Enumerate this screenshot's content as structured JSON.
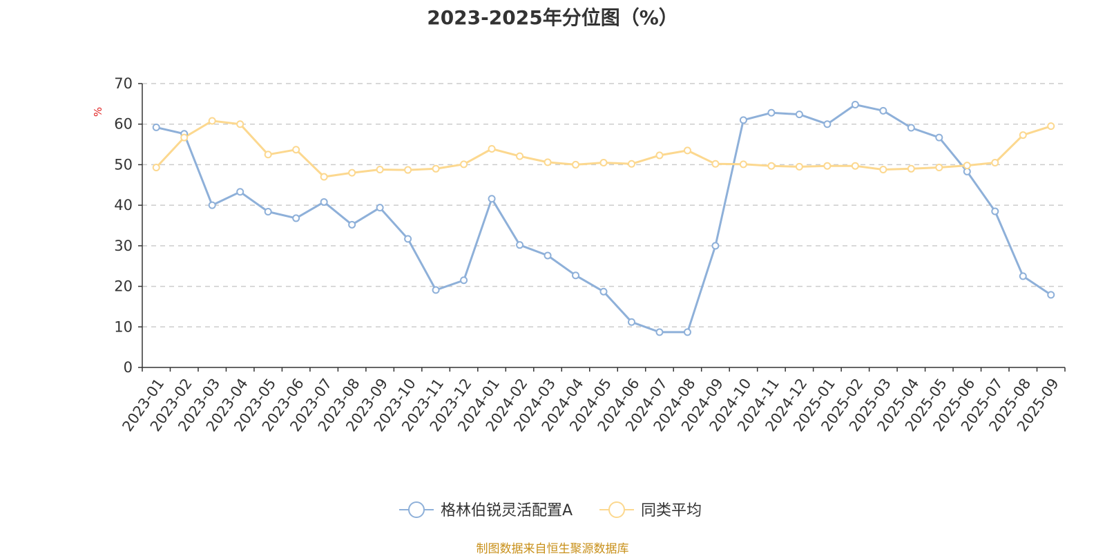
{
  "chart_data": {
    "type": "line",
    "title": "2023-2025年分位图（%）",
    "ylabel": "%",
    "xlabel": "",
    "ylim": [
      0,
      70
    ],
    "yticks": [
      0,
      10,
      20,
      30,
      40,
      50,
      60,
      70
    ],
    "grid": true,
    "legend_position": "bottom",
    "categories": [
      "2023-01",
      "2023-02",
      "2023-03",
      "2023-04",
      "2023-05",
      "2023-06",
      "2023-07",
      "2023-08",
      "2023-09",
      "2023-10",
      "2023-11",
      "2023-12",
      "2024-01",
      "2024-02",
      "2024-03",
      "2024-04",
      "2024-05",
      "2024-06",
      "2024-07",
      "2024-08",
      "2024-09",
      "2024-10",
      "2024-11",
      "2024-12",
      "2025-01",
      "2025-02",
      "2025-03",
      "2025-04",
      "2025-05",
      "2025-06",
      "2025-07",
      "2025-08",
      "2025-09"
    ],
    "series": [
      {
        "name": "格林伯锐灵活配置A",
        "color": "#8eb0d9",
        "values": [
          59.2,
          57.6,
          40.0,
          43.3,
          38.4,
          36.8,
          40.8,
          35.2,
          39.4,
          31.7,
          19.1,
          21.5,
          41.6,
          30.2,
          27.6,
          22.7,
          18.7,
          11.2,
          8.7,
          8.7,
          30.0,
          61.0,
          62.8,
          62.4,
          60.0,
          64.8,
          63.3,
          59.1,
          56.7,
          48.3,
          38.5,
          22.5,
          17.9
        ]
      },
      {
        "name": "同类平均",
        "color": "#fcd88f",
        "values": [
          49.3,
          56.7,
          60.8,
          60.0,
          52.5,
          53.7,
          47.0,
          48.0,
          48.8,
          48.7,
          49.0,
          50.1,
          53.9,
          52.1,
          50.6,
          50.0,
          50.5,
          50.2,
          52.3,
          53.5,
          50.2,
          50.1,
          49.7,
          49.5,
          49.7,
          49.7,
          48.8,
          49.0,
          49.3,
          49.8,
          50.5,
          57.3,
          59.5
        ]
      }
    ]
  },
  "footer": {
    "source": "制图数据来自恒生聚源数据库"
  },
  "colors": {
    "axis": "#333333",
    "grid": "#cccccc"
  }
}
